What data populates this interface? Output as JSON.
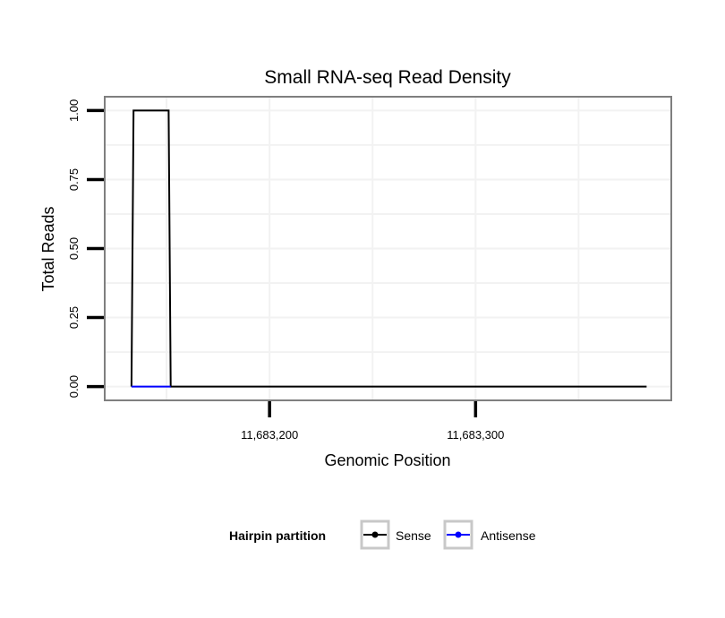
{
  "chart_data": {
    "type": "line",
    "title": "Small RNA-seq Read Density",
    "xlabel": "Genomic Position",
    "ylabel": "Total Reads",
    "xlim": [
      11683120,
      11683395
    ],
    "ylim": [
      -0.05,
      1.05
    ],
    "x_ticks": [
      11683200,
      11683300
    ],
    "x_tick_labels": [
      "11,683,200",
      "11,683,300"
    ],
    "y_ticks": [
      0,
      0.25,
      0.5,
      0.75,
      1.0
    ],
    "y_tick_labels": [
      "0.00",
      "0.25",
      "0.50",
      "0.75",
      "1.00"
    ],
    "grid": true,
    "legend": {
      "title": "Hairpin partition",
      "position": "bottom"
    },
    "series": [
      {
        "name": "Sense",
        "color": "#000000",
        "x": [
          11683133,
          11683134,
          11683151,
          11683152,
          11683383
        ],
        "y": [
          0,
          1,
          1,
          0,
          0
        ]
      },
      {
        "name": "Antisense",
        "color": "#0000ff",
        "x": [
          11683133,
          11683152
        ],
        "y": [
          0,
          0
        ]
      }
    ]
  }
}
